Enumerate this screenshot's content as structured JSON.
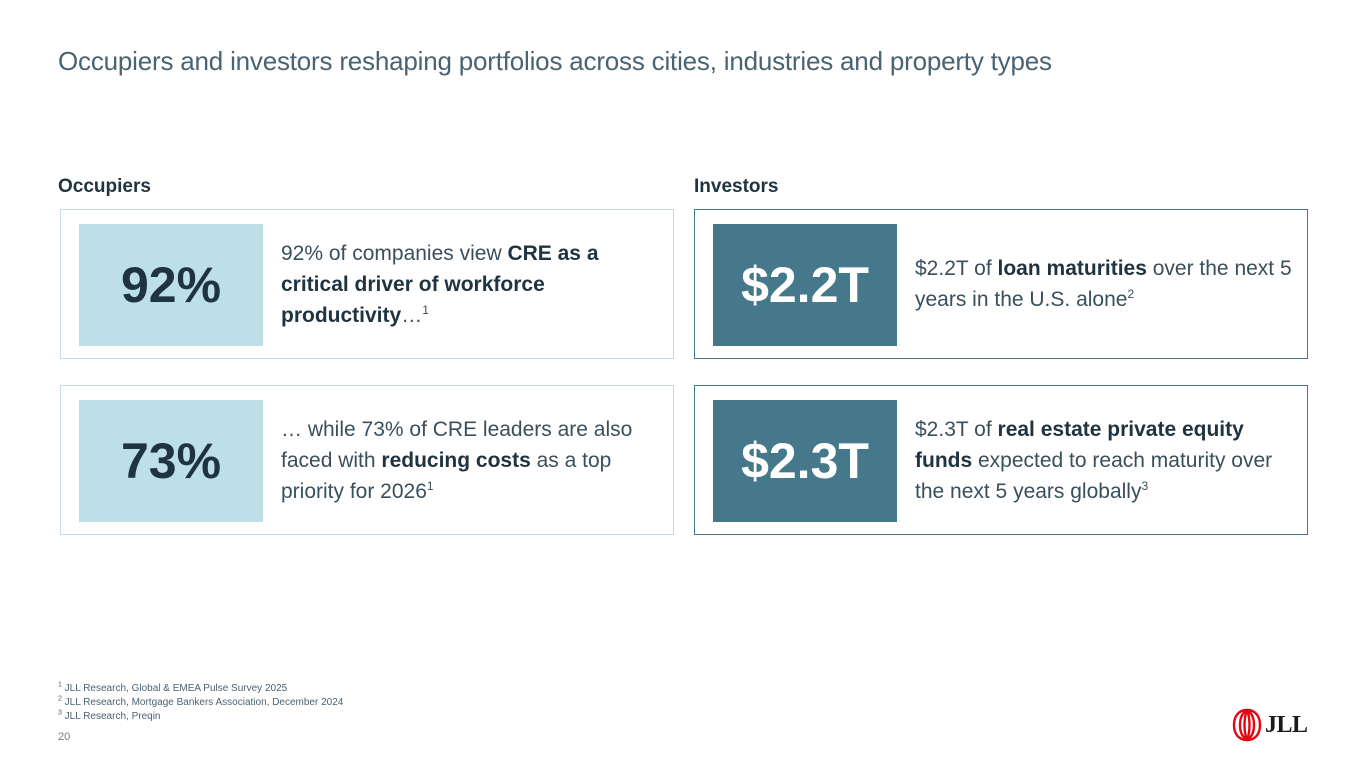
{
  "page": {
    "title": "Occupiers and investors reshaping portfolios across cities, industries and property types",
    "number": "20"
  },
  "occupiers": {
    "label": "Occupiers",
    "cards": [
      {
        "stat": "92%",
        "text_1": "92% of companies view ",
        "bold_1": "CRE as a critical driver of workforce productivity",
        "text_2": "…",
        "sup": "1"
      },
      {
        "stat": "73%",
        "text_1": "… while 73% of CRE leaders are also faced with ",
        "bold_1": "reducing costs",
        "text_2": " as a top priority for 2026",
        "sup": "1"
      }
    ]
  },
  "investors": {
    "label": "Investors",
    "cards": [
      {
        "stat": "$2.2T",
        "text_1": "$2.2T of ",
        "bold_1": "loan maturities",
        "text_2": " over the next 5 years in the U.S. alone",
        "sup": "2"
      },
      {
        "stat": "$2.3T",
        "text_1": "$2.3T of ",
        "bold_1": "real estate private equity funds",
        "text_2": " expected to reach maturity over the next 5 years globally",
        "sup": "3"
      }
    ]
  },
  "footnotes": [
    {
      "num": "1",
      "text": " JLL Research, Global & EMEA Pulse Survey 2025"
    },
    {
      "num": "2",
      "text": " JLL Research, Mortgage Bankers Association, December 2024"
    },
    {
      "num": "3",
      "text": " JLL Research, Preqin"
    }
  ],
  "logo": {
    "icon": "jll-logo-icon",
    "text": "JLL",
    "color": "#e30613"
  },
  "colors": {
    "occupier_fill": "#bde0e8",
    "investor_fill": "#44788a",
    "title": "#4a6373"
  }
}
